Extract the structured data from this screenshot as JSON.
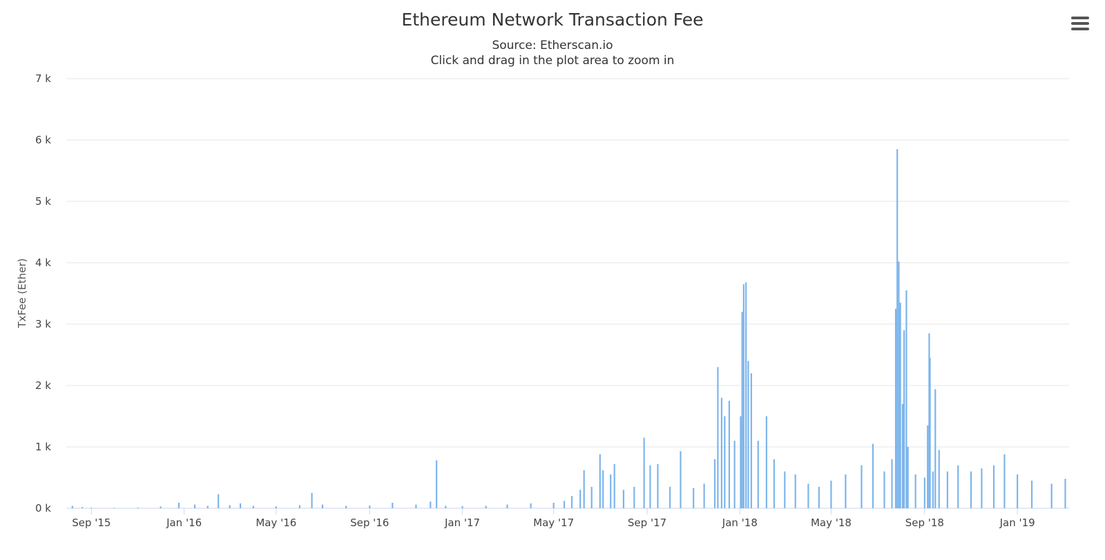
{
  "chart_data": {
    "type": "bar",
    "title": "Ethereum Network Transaction Fee",
    "subtitle": "Source: Etherscan.io",
    "hint": "Click and drag in the plot area to zoom in",
    "ylabel": "TxFee (Ether)",
    "xlabel": "",
    "ylim": [
      0,
      7000
    ],
    "yticks": [
      0,
      1000,
      2000,
      3000,
      4000,
      5000,
      6000,
      7000
    ],
    "ytick_labels": [
      "0 k",
      "1 k",
      "2 k",
      "3 k",
      "4 k",
      "5 k",
      "6 k",
      "7 k"
    ],
    "xlim": [
      "2015-07-30",
      "2019-03-10"
    ],
    "xticks": [
      {
        "date": "2015-09-01",
        "label": "Sep '15"
      },
      {
        "date": "2016-01-01",
        "label": "Jan '16"
      },
      {
        "date": "2016-05-01",
        "label": "May '16"
      },
      {
        "date": "2016-09-01",
        "label": "Sep '16"
      },
      {
        "date": "2017-01-01",
        "label": "Jan '17"
      },
      {
        "date": "2017-05-01",
        "label": "May '17"
      },
      {
        "date": "2017-09-01",
        "label": "Sep '17"
      },
      {
        "date": "2018-01-01",
        "label": "Jan '18"
      },
      {
        "date": "2018-05-01",
        "label": "May '18"
      },
      {
        "date": "2018-09-01",
        "label": "Sep '18"
      },
      {
        "date": "2019-01-01",
        "label": "Jan '19"
      }
    ],
    "grid": true,
    "color": "#7cb5ec",
    "series": [
      {
        "values": [
          [
            "2015-08-07",
            40
          ],
          [
            "2015-08-20",
            20
          ],
          [
            "2015-09-01",
            10
          ],
          [
            "2015-10-01",
            8
          ],
          [
            "2015-11-01",
            10
          ],
          [
            "2015-12-01",
            30
          ],
          [
            "2015-12-25",
            90
          ],
          [
            "2016-01-15",
            60
          ],
          [
            "2016-02-01",
            40
          ],
          [
            "2016-02-15",
            230
          ],
          [
            "2016-03-01",
            50
          ],
          [
            "2016-03-15",
            80
          ],
          [
            "2016-04-01",
            40
          ],
          [
            "2016-05-01",
            30
          ],
          [
            "2016-06-01",
            50
          ],
          [
            "2016-06-17",
            250
          ],
          [
            "2016-07-01",
            60
          ],
          [
            "2016-08-01",
            40
          ],
          [
            "2016-09-01",
            45
          ],
          [
            "2016-10-01",
            90
          ],
          [
            "2016-11-01",
            60
          ],
          [
            "2016-11-20",
            110
          ],
          [
            "2016-11-28",
            780
          ],
          [
            "2016-12-10",
            40
          ],
          [
            "2017-01-01",
            35
          ],
          [
            "2017-02-01",
            40
          ],
          [
            "2017-03-01",
            60
          ],
          [
            "2017-04-01",
            80
          ],
          [
            "2017-05-01",
            90
          ],
          [
            "2017-05-15",
            120
          ],
          [
            "2017-05-25",
            200
          ],
          [
            "2017-06-05",
            300
          ],
          [
            "2017-06-10",
            620
          ],
          [
            "2017-06-20",
            350
          ],
          [
            "2017-07-01",
            880
          ],
          [
            "2017-07-05",
            620
          ],
          [
            "2017-07-15",
            550
          ],
          [
            "2017-07-20",
            720
          ],
          [
            "2017-08-01",
            300
          ],
          [
            "2017-08-15",
            350
          ],
          [
            "2017-08-28",
            1150
          ],
          [
            "2017-09-05",
            700
          ],
          [
            "2017-09-15",
            720
          ],
          [
            "2017-10-01",
            350
          ],
          [
            "2017-10-15",
            930
          ],
          [
            "2017-11-01",
            330
          ],
          [
            "2017-11-15",
            400
          ],
          [
            "2017-11-29",
            800
          ],
          [
            "2017-12-03",
            2300
          ],
          [
            "2017-12-08",
            1800
          ],
          [
            "2017-12-12",
            1500
          ],
          [
            "2017-12-18",
            1750
          ],
          [
            "2017-12-25",
            1100
          ],
          [
            "2018-01-02",
            1500
          ],
          [
            "2018-01-04",
            3200
          ],
          [
            "2018-01-06",
            3650
          ],
          [
            "2018-01-09",
            3680
          ],
          [
            "2018-01-12",
            2400
          ],
          [
            "2018-01-16",
            2200
          ],
          [
            "2018-01-25",
            1100
          ],
          [
            "2018-02-05",
            1500
          ],
          [
            "2018-02-15",
            800
          ],
          [
            "2018-03-01",
            600
          ],
          [
            "2018-03-15",
            550
          ],
          [
            "2018-04-01",
            400
          ],
          [
            "2018-04-15",
            350
          ],
          [
            "2018-05-01",
            450
          ],
          [
            "2018-05-20",
            550
          ],
          [
            "2018-06-10",
            700
          ],
          [
            "2018-06-25",
            1050
          ],
          [
            "2018-07-10",
            600
          ],
          [
            "2018-07-20",
            800
          ],
          [
            "2018-07-25",
            3250
          ],
          [
            "2018-07-27",
            5850
          ],
          [
            "2018-07-29",
            4020
          ],
          [
            "2018-07-31",
            3350
          ],
          [
            "2018-08-03",
            1700
          ],
          [
            "2018-08-05",
            2900
          ],
          [
            "2018-08-08",
            3550
          ],
          [
            "2018-08-10",
            1000
          ],
          [
            "2018-08-20",
            550
          ],
          [
            "2018-09-01",
            500
          ],
          [
            "2018-09-05",
            1350
          ],
          [
            "2018-09-07",
            2850
          ],
          [
            "2018-09-08",
            2450
          ],
          [
            "2018-09-12",
            600
          ],
          [
            "2018-09-15",
            1940
          ],
          [
            "2018-09-20",
            950
          ],
          [
            "2018-10-01",
            600
          ],
          [
            "2018-10-15",
            700
          ],
          [
            "2018-11-01",
            600
          ],
          [
            "2018-11-15",
            650
          ],
          [
            "2018-12-01",
            700
          ],
          [
            "2018-12-15",
            880
          ],
          [
            "2019-01-01",
            550
          ],
          [
            "2019-01-20",
            450
          ],
          [
            "2019-02-15",
            400
          ],
          [
            "2019-03-05",
            480
          ]
        ]
      }
    ]
  },
  "ui": {
    "menu_icon": "hamburger-menu-icon"
  }
}
